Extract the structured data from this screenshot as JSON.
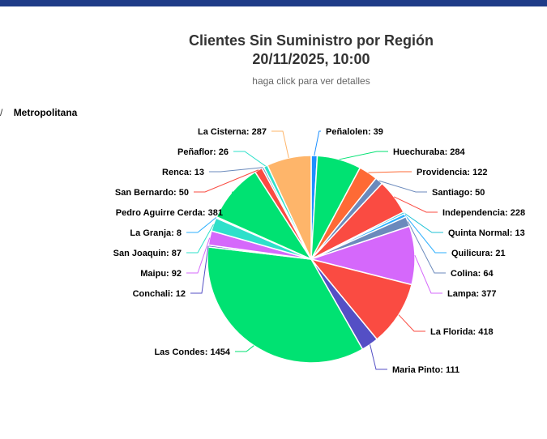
{
  "header": {
    "title_line1": "Clientes Sin Suministro por Región",
    "title_line2": "20/11/2025, 10:00",
    "subtitle": "haga click para ver detalles"
  },
  "breadcrumb": {
    "separator": "/",
    "current": "Metropolitana"
  },
  "chart_data": {
    "type": "pie",
    "title": "Clientes Sin Suministro por Región",
    "subtitle": "20/11/2025, 10:00",
    "series": [
      {
        "data": [
          {
            "name": "Peñalolen",
            "value": 39,
            "color": "#1e90ff",
            "label": "Peñalolen: 39"
          },
          {
            "name": "Huechuraba",
            "value": 284,
            "color": "#00e272",
            "label": "Huechuraba: 284"
          },
          {
            "name": "Providencia",
            "value": 122,
            "color": "#fe6a35",
            "label": "Providencia: 122"
          },
          {
            "name": "Santiago",
            "value": 50,
            "color": "#6b8abc",
            "label": "Santiago: 50"
          },
          {
            "name": "Independencia",
            "value": 228,
            "color": "#fa4b42",
            "label": "Independencia: 228"
          },
          {
            "name": "Quinta Normal",
            "value": 13,
            "color": "#1fc2d6",
            "label": "Quinta Normal: 13"
          },
          {
            "name": "Quilicura",
            "value": 21,
            "color": "#2caffe",
            "label": "Quilicura: 21"
          },
          {
            "name": "Colina",
            "value": 64,
            "color": "#6b8abc",
            "label": "Colina: 64"
          },
          {
            "name": "Lampa",
            "value": 377,
            "color": "#d568fb",
            "label": "Lampa: 377"
          },
          {
            "name": "La Florida",
            "value": 418,
            "color": "#fa4b42",
            "label": "La Florida: 418"
          },
          {
            "name": "Maria Pinto",
            "value": 111,
            "color": "#544fc5",
            "label": "Maria Pinto: 111"
          },
          {
            "name": "Las Condes",
            "value": 1454,
            "color": "#00e272",
            "label": "Las Condes: 1454"
          },
          {
            "name": "Conchali",
            "value": 12,
            "color": "#544fc5",
            "label": "Conchali: 12"
          },
          {
            "name": "Maipu",
            "value": 92,
            "color": "#d568fb",
            "label": "Maipu: 92"
          },
          {
            "name": "San Joaquin",
            "value": 87,
            "color": "#2ee0ca",
            "label": "San Joaquin: 87"
          },
          {
            "name": "La Granja",
            "value": 8,
            "color": "#2caffe",
            "label": "La Granja: 8"
          },
          {
            "name": "Pedro Aguirre Cerda",
            "value": 381,
            "color": "#00e272",
            "label": "Pedro Aguirre Cerda: 381"
          },
          {
            "name": "San Bernardo",
            "value": 50,
            "color": "#fa4b42",
            "label": "San Bernardo: 50"
          },
          {
            "name": "Renca",
            "value": 13,
            "color": "#6b8abc",
            "label": "Renca: 13"
          },
          {
            "name": "Peñaflor",
            "value": 26,
            "color": "#2ee0ca",
            "label": "Peñaflor: 26"
          },
          {
            "name": "La Cisterna",
            "value": 287,
            "color": "#feb56a",
            "label": "La Cisterna: 287"
          }
        ]
      }
    ]
  }
}
